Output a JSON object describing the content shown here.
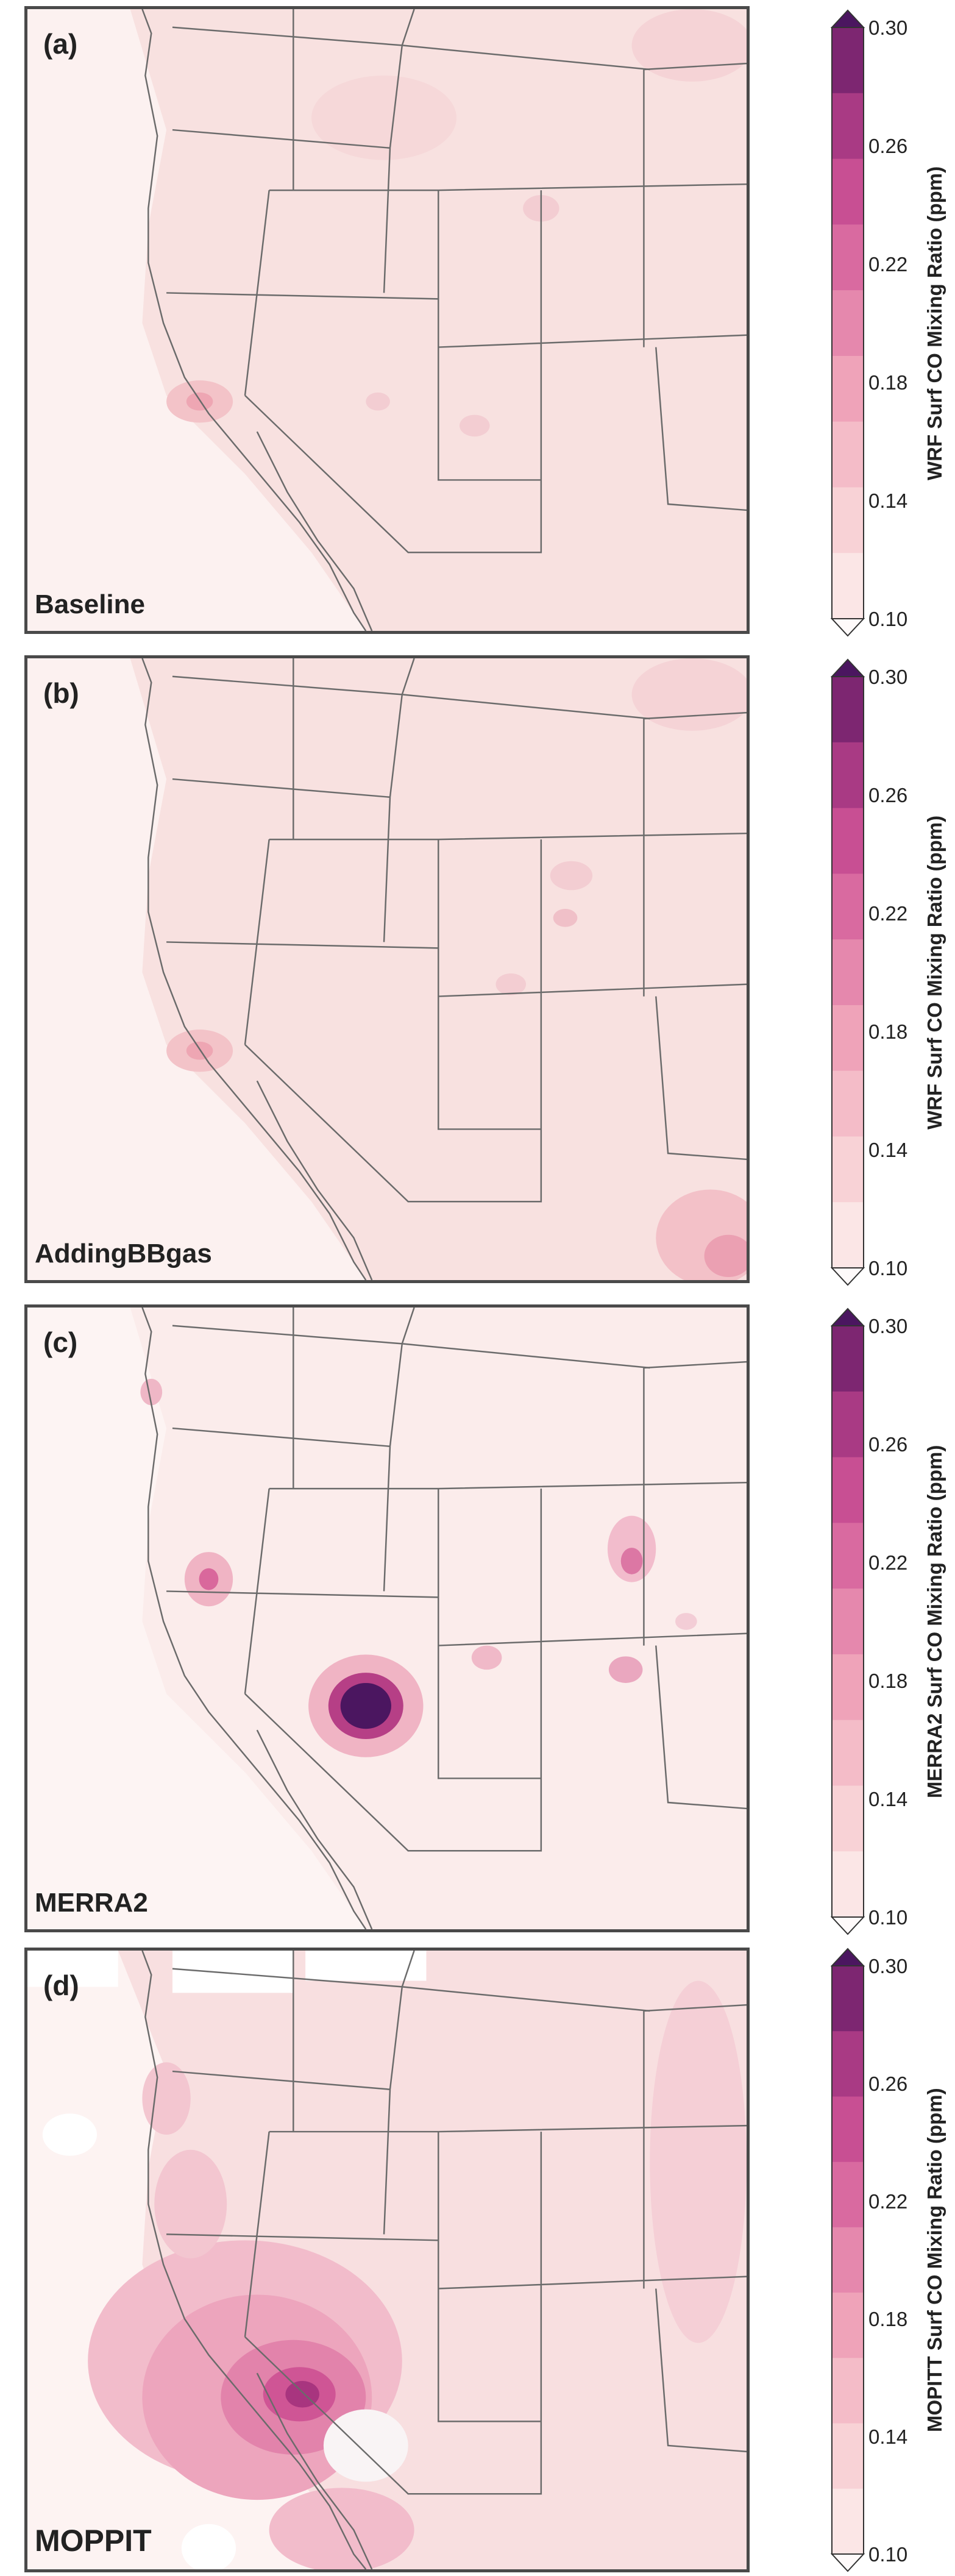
{
  "panels": [
    {
      "label": "(a)",
      "name": "Baseline"
    },
    {
      "label": "(b)",
      "name": "AddingBBgas"
    },
    {
      "label": "(c)",
      "name": "MERRA2"
    },
    {
      "label": "(d)",
      "name": "MOPPIT"
    }
  ],
  "colorbars": [
    {
      "title": "WRF Surf CO Mixing Ratio (ppm)"
    },
    {
      "title": "WRF Surf CO Mixing Ratio (ppm)"
    },
    {
      "title": "MERRA2 Surf CO Mixing Ratio (ppm)"
    },
    {
      "title": "MOPITT Surf CO Mixing Ratio (ppm)"
    }
  ],
  "colorbar_ticks": [
    "0.30",
    "0.26",
    "0.22",
    "0.18",
    "0.14",
    "0.10"
  ],
  "colorbar_levels": [
    0.1,
    0.12,
    0.14,
    0.16,
    0.18,
    0.2,
    0.22,
    0.24,
    0.26,
    0.28,
    0.3
  ],
  "colors": {
    "low": "#fdf0ef",
    "mid": "#f4a6c8",
    "high": "#c2418f",
    "top": "#4b1660",
    "border": "#4a4a4a"
  }
}
